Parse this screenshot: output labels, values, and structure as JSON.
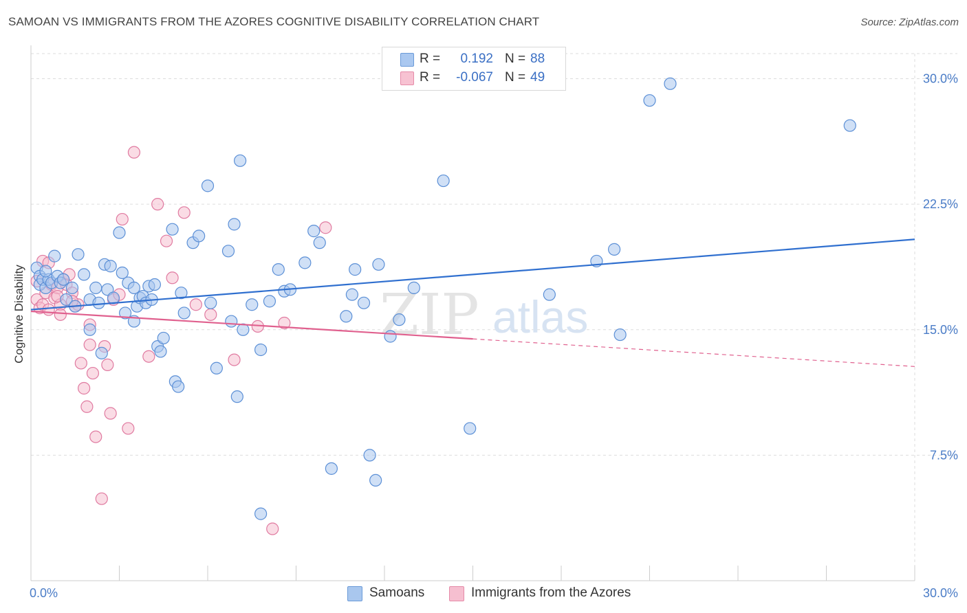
{
  "title": "SAMOAN VS IMMIGRANTS FROM THE AZORES COGNITIVE DISABILITY CORRELATION CHART",
  "source": "Source: ZipAtlas.com",
  "watermark": {
    "zip": "ZIP",
    "atlas": "atlas"
  },
  "legend": [
    {
      "r_label": "R =",
      "r_value": "0.192",
      "n_label": "N =",
      "n_value": "88",
      "color": "#aac8f0",
      "border": "#6a9ad8"
    },
    {
      "r_label": "R =",
      "r_value": "-0.067",
      "n_label": "N =",
      "n_value": "49",
      "color": "#f7c2d2",
      "border": "#e58aa8"
    }
  ],
  "colors": {
    "blue_fill": "#a9c7ee",
    "blue_stroke": "#5b8fd6",
    "blue_line": "#2f6fcf",
    "pink_fill": "#f6bfd0",
    "pink_stroke": "#e07aa0",
    "pink_line": "#e0608e",
    "grid": "#dddddd",
    "axis_text": "#4a7cc7"
  },
  "chart_data": {
    "type": "scatter",
    "title": "SAMOAN VS IMMIGRANTS FROM THE AZORES COGNITIVE DISABILITY CORRELATION CHART",
    "xlabel": "",
    "ylabel": "Cognitive Disability",
    "xlim": [
      0,
      30
    ],
    "ylim": [
      0,
      31.5
    ],
    "x_tick_labels": [
      "0.0%",
      "30.0%"
    ],
    "y_ticks": [
      7.5,
      15.0,
      22.5,
      30.0
    ],
    "y_tick_labels": [
      "7.5%",
      "15.0%",
      "22.5%",
      "30.0%"
    ],
    "grid": true,
    "legend_position": "top-center",
    "series": [
      {
        "name": "Samoans",
        "color": "#a9c7ee",
        "points": [
          [
            0.2,
            18.7
          ],
          [
            0.3,
            18.2
          ],
          [
            0.3,
            17.7
          ],
          [
            0.4,
            18.0
          ],
          [
            0.5,
            17.5
          ],
          [
            0.6,
            18.0
          ],
          [
            0.7,
            17.8
          ],
          [
            0.8,
            19.4
          ],
          [
            0.9,
            18.2
          ],
          [
            1.0,
            17.8
          ],
          [
            1.1,
            18.0
          ],
          [
            1.2,
            16.8
          ],
          [
            1.4,
            17.5
          ],
          [
            1.5,
            16.4
          ],
          [
            1.6,
            19.5
          ],
          [
            1.8,
            18.3
          ],
          [
            2.0,
            16.8
          ],
          [
            2.0,
            15.0
          ],
          [
            2.2,
            17.5
          ],
          [
            2.3,
            16.6
          ],
          [
            2.4,
            13.6
          ],
          [
            2.5,
            18.9
          ],
          [
            2.6,
            17.4
          ],
          [
            2.7,
            18.8
          ],
          [
            2.8,
            16.9
          ],
          [
            3.0,
            20.8
          ],
          [
            3.1,
            18.4
          ],
          [
            3.2,
            16.0
          ],
          [
            3.3,
            17.8
          ],
          [
            3.5,
            15.5
          ],
          [
            3.5,
            17.5
          ],
          [
            3.6,
            16.4
          ],
          [
            3.7,
            16.9
          ],
          [
            3.8,
            17.0
          ],
          [
            3.9,
            16.6
          ],
          [
            4.0,
            17.6
          ],
          [
            4.1,
            16.8
          ],
          [
            4.2,
            17.7
          ],
          [
            4.3,
            14.0
          ],
          [
            4.4,
            13.7
          ],
          [
            4.5,
            14.5
          ],
          [
            4.8,
            21.0
          ],
          [
            4.9,
            11.9
          ],
          [
            5.0,
            11.6
          ],
          [
            5.1,
            17.2
          ],
          [
            5.2,
            16.0
          ],
          [
            5.5,
            20.2
          ],
          [
            5.7,
            20.6
          ],
          [
            6.0,
            23.6
          ],
          [
            6.1,
            16.6
          ],
          [
            6.3,
            12.7
          ],
          [
            6.7,
            19.7
          ],
          [
            6.8,
            15.5
          ],
          [
            6.9,
            21.3
          ],
          [
            7.0,
            11.0
          ],
          [
            7.1,
            25.1
          ],
          [
            7.2,
            15.0
          ],
          [
            7.5,
            16.5
          ],
          [
            7.8,
            4.0
          ],
          [
            7.8,
            13.8
          ],
          [
            8.1,
            16.7
          ],
          [
            8.4,
            18.6
          ],
          [
            8.6,
            17.3
          ],
          [
            8.8,
            17.4
          ],
          [
            9.3,
            19.0
          ],
          [
            9.6,
            20.9
          ],
          [
            9.8,
            20.2
          ],
          [
            10.2,
            6.7
          ],
          [
            10.7,
            15.8
          ],
          [
            10.9,
            17.1
          ],
          [
            11.0,
            18.6
          ],
          [
            11.3,
            16.6
          ],
          [
            11.5,
            7.5
          ],
          [
            11.7,
            6.0
          ],
          [
            11.8,
            18.9
          ],
          [
            12.2,
            14.6
          ],
          [
            12.5,
            15.6
          ],
          [
            13.0,
            17.5
          ],
          [
            14.0,
            23.9
          ],
          [
            14.9,
            9.1
          ],
          [
            17.6,
            17.1
          ],
          [
            19.2,
            19.1
          ],
          [
            19.8,
            19.8
          ],
          [
            20.0,
            14.7
          ],
          [
            21.0,
            28.7
          ],
          [
            21.7,
            29.7
          ],
          [
            27.8,
            27.2
          ],
          [
            0.5,
            18.5
          ]
        ]
      },
      {
        "name": "Immigrants from the Azores",
        "color": "#f6bfd0",
        "points": [
          [
            0.2,
            16.8
          ],
          [
            0.3,
            16.3
          ],
          [
            0.4,
            16.5
          ],
          [
            0.4,
            19.1
          ],
          [
            0.5,
            17.2
          ],
          [
            0.6,
            19.0
          ],
          [
            0.7,
            17.7
          ],
          [
            0.8,
            16.9
          ],
          [
            0.9,
            17.5
          ],
          [
            1.0,
            16.5
          ],
          [
            1.0,
            15.9
          ],
          [
            1.1,
            18.0
          ],
          [
            1.2,
            17.7
          ],
          [
            1.3,
            18.3
          ],
          [
            1.4,
            17.2
          ],
          [
            1.5,
            16.4
          ],
          [
            1.6,
            16.5
          ],
          [
            1.7,
            13.0
          ],
          [
            1.8,
            11.5
          ],
          [
            1.9,
            10.4
          ],
          [
            2.0,
            15.3
          ],
          [
            2.0,
            14.1
          ],
          [
            2.1,
            12.4
          ],
          [
            2.2,
            8.6
          ],
          [
            2.4,
            4.9
          ],
          [
            2.5,
            14.0
          ],
          [
            2.6,
            12.9
          ],
          [
            2.7,
            10.0
          ],
          [
            2.8,
            16.8
          ],
          [
            3.0,
            17.1
          ],
          [
            3.1,
            21.6
          ],
          [
            3.3,
            9.1
          ],
          [
            3.5,
            25.6
          ],
          [
            4.0,
            13.4
          ],
          [
            4.3,
            22.5
          ],
          [
            4.6,
            20.3
          ],
          [
            4.8,
            18.1
          ],
          [
            5.2,
            22.0
          ],
          [
            5.6,
            16.5
          ],
          [
            6.1,
            15.9
          ],
          [
            6.9,
            13.2
          ],
          [
            7.7,
            15.2
          ],
          [
            8.2,
            3.1
          ],
          [
            8.6,
            15.4
          ],
          [
            10.0,
            21.1
          ],
          [
            0.2,
            17.9
          ],
          [
            0.9,
            17.0
          ],
          [
            1.4,
            16.7
          ],
          [
            0.6,
            16.2
          ]
        ]
      }
    ],
    "trend_lines": [
      {
        "series": "Samoans",
        "x": [
          0,
          30
        ],
        "y": [
          16.2,
          20.4
        ],
        "dashed_from": null
      },
      {
        "series": "Immigrants from the Azores",
        "x": [
          0,
          30
        ],
        "y": [
          16.1,
          12.8
        ],
        "dashed_from": 15
      }
    ]
  },
  "bottom_legend": [
    {
      "label": "Samoans",
      "color": "#a9c7ee",
      "border": "#6a9ad8"
    },
    {
      "label": "Immigrants from the Azores",
      "color": "#f6bfd0",
      "border": "#e58aa8"
    }
  ]
}
